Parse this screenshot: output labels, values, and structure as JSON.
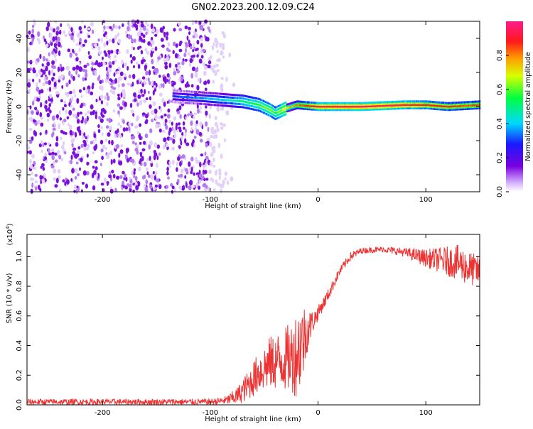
{
  "figure": {
    "title": "GN02.2023.200.12.09.C24"
  },
  "colorbar": {
    "label": "Normalized spectral amplitude",
    "range": [
      0,
      1
    ],
    "ticks": [
      "0.0",
      "0.2",
      "0.4",
      "0.6",
      "0.8"
    ],
    "tick_values": [
      0.0,
      0.2,
      0.4,
      0.6,
      0.8
    ],
    "colormap": "rainbow (white-violet-blue-cyan-green-yellow-orange-red-magenta)"
  },
  "chart_data": [
    {
      "type": "heatmap",
      "title": "",
      "xlabel": "Height of straight line (km)",
      "ylabel": "Frequency (Hz)",
      "xlim": [
        -270,
        150
      ],
      "ylim": [
        -50,
        50
      ],
      "xticks": [
        "-200",
        "-100",
        "0",
        "100"
      ],
      "xtick_values": [
        -200,
        -100,
        0,
        100
      ],
      "yticks": [
        "-40",
        "-20",
        "0",
        "20",
        "40"
      ],
      "ytick_values": [
        -40,
        -20,
        0,
        20,
        40
      ],
      "regions": [
        {
          "description": "broadband noise",
          "x": [
            -270,
            -100
          ],
          "y": [
            -50,
            50
          ],
          "amplitude": 0.1
        },
        {
          "description": "noise fading",
          "x": [
            -100,
            -75
          ],
          "y": [
            -50,
            50
          ],
          "amplitude": 0.05
        },
        {
          "description": "narrow line near 0 Hz",
          "x": [
            -135,
            150
          ],
          "y": [
            -2,
            6
          ],
          "amplitude": 0.9
        }
      ],
      "ridge": {
        "x": [
          -135,
          -110,
          -90,
          -70,
          -55,
          -45,
          -40,
          -30,
          -20,
          0,
          40,
          80,
          100,
          120,
          150
        ],
        "y": [
          6,
          5,
          4,
          3,
          1,
          -2,
          -4,
          -1,
          1,
          0,
          0,
          1,
          1,
          0,
          1
        ],
        "amplitude": [
          0.3,
          0.35,
          0.4,
          0.5,
          0.55,
          0.6,
          0.55,
          0.7,
          0.8,
          0.95,
          0.98,
          0.95,
          0.9,
          0.88,
          0.85
        ]
      },
      "line_frequency_hz": 0
    },
    {
      "type": "line",
      "title": "",
      "xlabel": "Height of straight line (km)",
      "ylabel": "SNR (10 * v/v)",
      "y_multiplier": "(x10",
      "y_multiplier_exp": "4",
      "y_multiplier_close": ")",
      "xlim": [
        -270,
        150
      ],
      "ylim": [
        0,
        1.15
      ],
      "xticks": [
        "-200",
        "-100",
        "0",
        "100"
      ],
      "xtick_values": [
        -200,
        -100,
        0,
        100
      ],
      "yticks": [
        "0.0",
        "0.2",
        "0.4",
        "0.6",
        "0.8",
        "1.0"
      ],
      "ytick_values": [
        0.0,
        0.2,
        0.4,
        0.6,
        0.8,
        1.0
      ],
      "color": "#ee3333",
      "series": [
        {
          "x": [
            -270,
            -200,
            -150,
            -100,
            -85,
            -75,
            -65,
            -55,
            -45,
            -35,
            -25,
            -20,
            -15,
            -10,
            -5,
            0,
            10,
            20,
            30,
            40,
            60,
            80,
            100,
            110,
            120,
            130,
            140,
            150
          ],
          "y": [
            0.02,
            0.02,
            0.02,
            0.02,
            0.03,
            0.06,
            0.13,
            0.22,
            0.28,
            0.3,
            0.32,
            0.35,
            0.42,
            0.5,
            0.56,
            0.62,
            0.75,
            0.9,
            1.0,
            1.04,
            1.05,
            1.03,
            0.99,
            0.98,
            0.97,
            0.96,
            0.92,
            0.9
          ],
          "spread": [
            0.02,
            0.02,
            0.02,
            0.02,
            0.03,
            0.06,
            0.1,
            0.14,
            0.18,
            0.2,
            0.24,
            0.3,
            0.3,
            0.15,
            0.08,
            0.05,
            0.04,
            0.03,
            0.03,
            0.02,
            0.02,
            0.03,
            0.06,
            0.08,
            0.1,
            0.12,
            0.12,
            0.1
          ]
        }
      ]
    }
  ]
}
